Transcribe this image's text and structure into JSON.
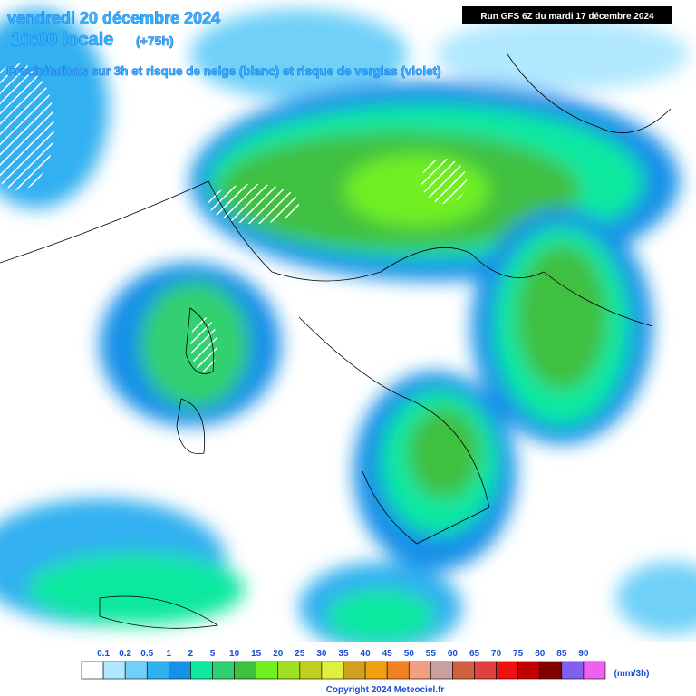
{
  "header": {
    "date": "vendredi 20 décembre 2024",
    "time": "10:00 locale",
    "lead": "(+75h)",
    "subtitle": "Précipitations sur 3h et risque de neige (blanc) et risque de verglas (violet)",
    "run": "Run GFS 6Z du mardi 17 décembre 2024"
  },
  "legend": {
    "labels": [
      "0.1",
      "0.2",
      "0.5",
      "1",
      "2",
      "5",
      "10",
      "15",
      "20",
      "25",
      "30",
      "35",
      "40",
      "45",
      "50",
      "55",
      "60",
      "65",
      "70",
      "75",
      "80",
      "85",
      "90"
    ],
    "colors": [
      "#ffffff",
      "#b0e8ff",
      "#70d0f8",
      "#30b0f0",
      "#1890e8",
      "#10e8a0",
      "#30d070",
      "#40c040",
      "#70f020",
      "#a0e020",
      "#c0d020",
      "#e0f040",
      "#d0a020",
      "#f0a010",
      "#f08020",
      "#f0a080",
      "#c8a0a0",
      "#d06040",
      "#e04040",
      "#f01010",
      "#c00000",
      "#800000",
      "#8060f0",
      "#f060f0"
    ],
    "unit": "(mm/3h)"
  },
  "footer": {
    "copyright": "Copyright 2024 Meteociel.fr"
  }
}
